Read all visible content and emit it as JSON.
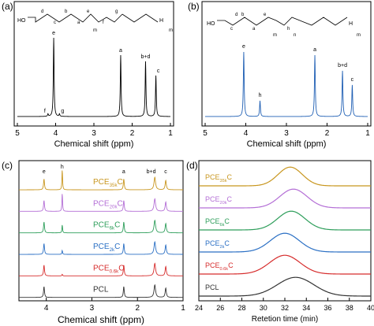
{
  "panels": [
    {
      "letter": "(a)",
      "structure": {
        "ho": "HO",
        "h_end": "H",
        "letters": [
          "d",
          "c",
          "b",
          "a",
          "e",
          "f",
          "g"
        ],
        "subscripts": [
          "m",
          "m"
        ]
      },
      "peaks": [
        "e",
        "a",
        "b+d",
        "c",
        "f",
        "g"
      ],
      "chart_data": {
        "type": "line",
        "xlabel": "Chemical shift (ppm)",
        "x_ticks": [
          "5",
          "4",
          "3",
          "2",
          "1"
        ],
        "xlim": [
          5,
          1
        ],
        "color": "#000000",
        "peaks_ppm": {
          "e": 4.05,
          "a": 2.3,
          "b+d": 1.65,
          "c": 1.38,
          "f": 4.2,
          "g": 3.9
        }
      }
    },
    {
      "letter": "(b)",
      "structure": {
        "ho": "HO",
        "h_end": "H",
        "letters": [
          "c",
          "b",
          "a",
          "e",
          "d",
          "h"
        ],
        "subscripts": [
          "m",
          "n",
          "m"
        ]
      },
      "peaks": [
        "e",
        "h",
        "a",
        "b+d",
        "c"
      ],
      "chart_data": {
        "type": "line",
        "xlabel": "Chemical shift (ppm)",
        "x_ticks": [
          "5",
          "4",
          "3",
          "2",
          "1"
        ],
        "xlim": [
          5,
          1
        ],
        "color": "#1f5fb4",
        "peaks_ppm": {
          "e": 4.05,
          "h": 3.65,
          "a": 2.3,
          "b+d": 1.62,
          "c": 1.38
        }
      }
    },
    {
      "letter": "(c)",
      "peaks": [
        "e",
        "h",
        "a",
        "b+d",
        "c"
      ],
      "chart_data": {
        "type": "line",
        "xlabel": "Chemical shift (ppm)",
        "x_ticks": [
          "4",
          "3",
          "2",
          "1"
        ],
        "xlim": [
          4.6,
          1.0
        ],
        "series": [
          {
            "name": "PCE35kC",
            "label_main": "PCE",
            "label_sub": "35k",
            "label_tail": "C",
            "color": "#c8961e",
            "h_peak": 1.0
          },
          {
            "name": "PCE20kC",
            "label_main": "PCE",
            "label_sub": "20k",
            "label_tail": "C",
            "color": "#b46fd6",
            "h_peak": 0.9
          },
          {
            "name": "PCE6kC",
            "label_main": "PCE",
            "label_sub": "6k",
            "label_tail": "C",
            "color": "#2e9e5b",
            "h_peak": 0.4
          },
          {
            "name": "PCE2kC",
            "label_main": "PCE",
            "label_sub": "2k",
            "label_tail": "C",
            "color": "#2a6fc4",
            "h_peak": 0.2
          },
          {
            "name": "PCE0.6kC",
            "label_main": "PCE",
            "label_sub": "0.6k",
            "label_tail": "C",
            "color": "#d62c2c",
            "h_peak": 0.08
          },
          {
            "name": "PCL",
            "label_main": "PCL",
            "label_sub": "",
            "label_tail": "",
            "color": "#333333",
            "h_peak": 0.0
          }
        ]
      }
    },
    {
      "letter": "(d)",
      "chart_data": {
        "type": "line",
        "xlabel": "Retetion time (min)",
        "x_ticks": [
          "24",
          "26",
          "28",
          "30",
          "32",
          "34",
          "36",
          "38",
          "40"
        ],
        "xlim": [
          24,
          40
        ],
        "series": [
          {
            "name": "PCE35kC",
            "label_main": "PCE",
            "label_sub": "35k",
            "label_tail": "C",
            "color": "#c8961e",
            "peak_min": 32.5,
            "width_min": 1.6
          },
          {
            "name": "PCE20kC",
            "label_main": "PCE",
            "label_sub": "20k",
            "label_tail": "C",
            "color": "#b46fd6",
            "peak_min": 32.8,
            "width_min": 1.8
          },
          {
            "name": "PCE6kC",
            "label_main": "PCE",
            "label_sub": "6k",
            "label_tail": "C",
            "color": "#2e9e5b",
            "peak_min": 32.6,
            "width_min": 1.8
          },
          {
            "name": "PCE2kC",
            "label_main": "PCE",
            "label_sub": "2k",
            "label_tail": "C",
            "color": "#2a6fc4",
            "peak_min": 32.0,
            "width_min": 1.9
          },
          {
            "name": "PCE0.6kC",
            "label_main": "PCE",
            "label_sub": "0.6k",
            "label_tail": "C",
            "color": "#d62c2c",
            "peak_min": 32.0,
            "width_min": 2.0
          },
          {
            "name": "PCL",
            "label_main": "PCL",
            "label_sub": "",
            "label_tail": "",
            "color": "#333333",
            "peak_min": 33.0,
            "width_min": 2.4
          }
        ]
      }
    }
  ]
}
